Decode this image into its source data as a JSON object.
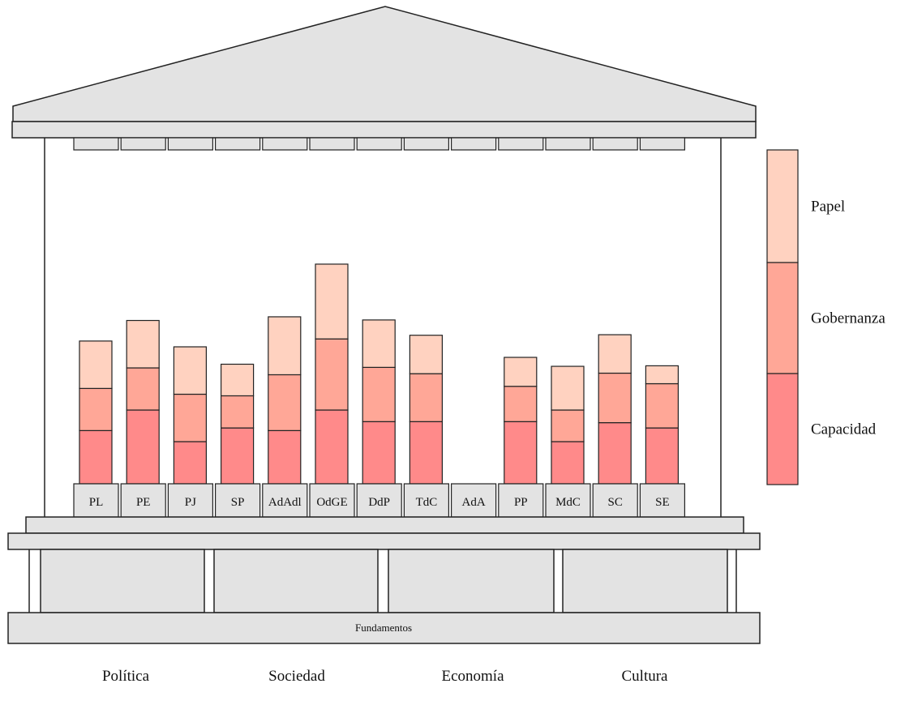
{
  "diagram": {
    "pillars": [
      {
        "label": "PL",
        "capacidad": 10.1,
        "gobernanza": 8.0,
        "papel": 9.0
      },
      {
        "label": "PE",
        "capacidad": 14.0,
        "gobernanza": 8.0,
        "papel": 9.0
      },
      {
        "label": "PJ",
        "capacidad": 8.0,
        "gobernanza": 9.0,
        "papel": 9.0
      },
      {
        "label": "SP",
        "capacidad": 10.6,
        "gobernanza": 6.1,
        "papel": 6.0
      },
      {
        "label": "AdAdl",
        "capacidad": 10.1,
        "gobernanza": 10.6,
        "papel": 11.0
      },
      {
        "label": "OdGE",
        "capacidad": 14.0,
        "gobernanza": 13.5,
        "papel": 14.2
      },
      {
        "label": "DdP",
        "capacidad": 11.8,
        "gobernanza": 10.3,
        "papel": 9.0
      },
      {
        "label": "TdC",
        "capacidad": 11.8,
        "gobernanza": 9.1,
        "papel": 7.3
      },
      {
        "label": "AdA",
        "capacidad": 0,
        "gobernanza": 0,
        "papel": 0
      },
      {
        "label": "PP",
        "capacidad": 11.8,
        "gobernanza": 6.7,
        "papel": 5.5
      },
      {
        "label": "MdC",
        "capacidad": 8.0,
        "gobernanza": 6.0,
        "papel": 8.3
      },
      {
        "label": "SC",
        "capacidad": 11.6,
        "gobernanza": 9.4,
        "papel": 7.3
      },
      {
        "label": "SE",
        "capacidad": 10.6,
        "gobernanza": 8.4,
        "papel": 3.4
      }
    ],
    "legend": [
      {
        "label": "Papel",
        "color": "#ffd2c0"
      },
      {
        "label": "Gobernanza",
        "color": "#ffa797"
      },
      {
        "label": "Capacidad",
        "color": "#ff8a8a"
      }
    ],
    "base_label": "Fundamentos",
    "foundation_labels": [
      "Política",
      "Sociedad",
      "Economía",
      "Cultura"
    ]
  }
}
